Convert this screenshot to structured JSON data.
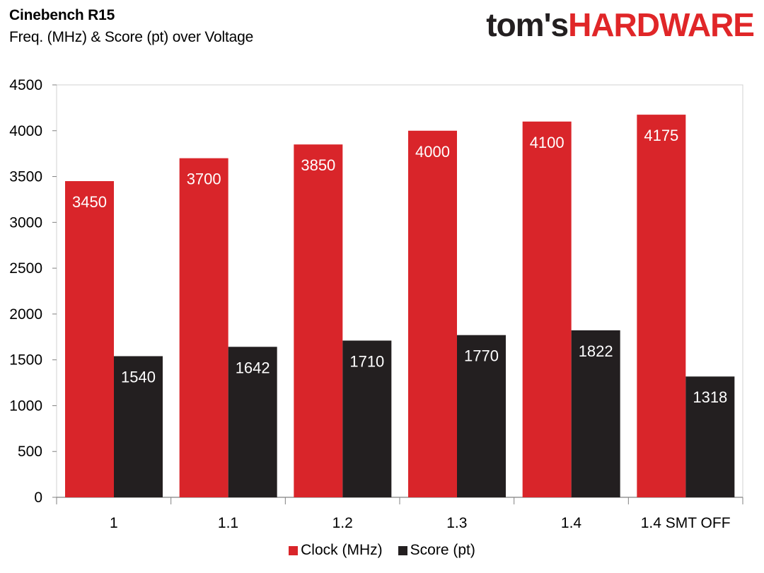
{
  "header": {
    "title": "Cinebench R15",
    "subtitle": "Freq. (MHz) & Score (pt) over Voltage",
    "logo_part1": "tom's",
    "logo_part2": "HARDWARE"
  },
  "colors": {
    "clock": "#d9252a",
    "score": "#231f20",
    "logo_dark": "#231f20",
    "logo_red": "#e02628"
  },
  "chart_data": {
    "type": "bar",
    "title": "Cinebench R15",
    "subtitle": "Freq. (MHz) & Score (pt) over Voltage",
    "categories": [
      "1",
      "1.1",
      "1.2",
      "1.3",
      "1.4",
      "1.4 SMT OFF"
    ],
    "series": [
      {
        "name": "Clock (MHz)",
        "values": [
          3450,
          3700,
          3850,
          4000,
          4100,
          4175
        ]
      },
      {
        "name": "Score (pt)",
        "values": [
          1540,
          1642,
          1710,
          1770,
          1822,
          1318
        ]
      }
    ],
    "ylim": [
      0,
      4500
    ],
    "yticks": [
      0,
      500,
      1000,
      1500,
      2000,
      2500,
      3000,
      3500,
      4000,
      4500
    ],
    "xlabel": "",
    "ylabel": "",
    "grid": false,
    "legend": "bottom-center",
    "data_labels": true
  }
}
